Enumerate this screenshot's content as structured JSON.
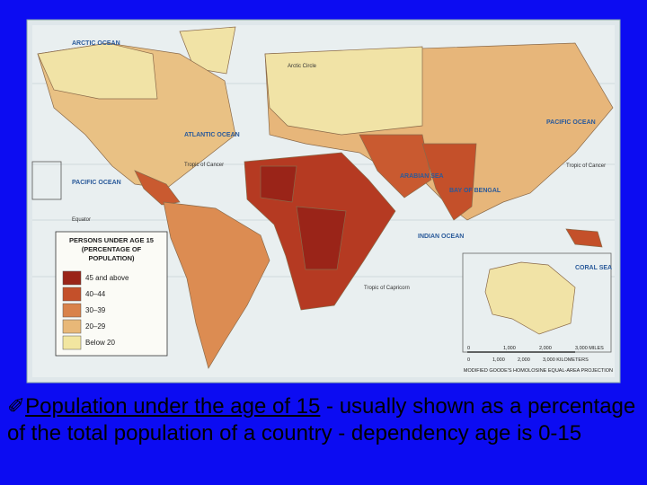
{
  "map_labels": {
    "arctic_ocean": "ARCTIC OCEAN",
    "arctic_circle": "Arctic Circle",
    "atlantic_ocean": "ATLANTIC OCEAN",
    "pacific_ocean_west": "PACIFIC OCEAN",
    "pacific_ocean_east": "PACIFIC OCEAN",
    "tropic_of_cancer_west": "Tropic of Cancer",
    "tropic_of_cancer_east": "Tropic of Cancer",
    "equator": "Equator",
    "tropic_of_capricorn": "Tropic of Capricorn",
    "arabian_sea": "ARABIAN SEA",
    "bay_of_bengal": "BAY OF BENGAL",
    "indian_ocean": "INDIAN OCEAN",
    "coral_sea": "CORAL SEA"
  },
  "legend": {
    "title": [
      "PERSONS UNDER AGE 15",
      "(PERCENTAGE OF",
      "POPULATION)"
    ],
    "items": [
      "45 and above",
      "40–44",
      "30–39",
      "20–29",
      "Below 20"
    ]
  },
  "scale": {
    "miles": [
      "0",
      "1,000",
      "2,000",
      "3,000 MILES"
    ],
    "kilometers": [
      "0",
      "1,000",
      "2,000",
      "3,000 KILOMETERS"
    ],
    "projection": "MODIFIED GOODE'S HOMOLOSINE EQUAL-AREA PROJECTION"
  },
  "caption": {
    "link": "Population under the age of 15",
    "rest": " - usually shown as a percentage of the total population of a country - dependency age is 0-15"
  }
}
